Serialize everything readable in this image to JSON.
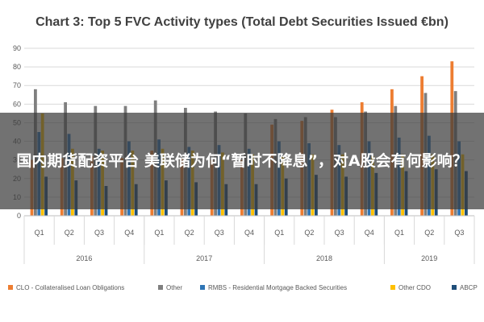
{
  "overlay": {
    "headline": "国内期货配资平台 美联储为何“暂时不降息”，对A股会有何影响？"
  },
  "chart_data": {
    "type": "bar",
    "title": "Chart 3: Top 5 FVC Activity types (Total Debt Securities Issued €bn)",
    "ylim": [
      0,
      90
    ],
    "yticks": [
      0,
      10,
      20,
      30,
      40,
      50,
      60,
      70,
      80,
      90
    ],
    "grid": true,
    "legend_position": "bottom",
    "categories": [
      "Q1",
      "Q2",
      "Q3",
      "Q4",
      "Q1",
      "Q2",
      "Q3",
      "Q4",
      "Q1",
      "Q2",
      "Q3",
      "Q4",
      "Q1",
      "Q2",
      "Q3"
    ],
    "years": [
      {
        "label": "2016",
        "quarters": 4
      },
      {
        "label": "2017",
        "quarters": 4
      },
      {
        "label": "2018",
        "quarters": 4
      },
      {
        "label": "2019",
        "quarters": 3
      }
    ],
    "series": [
      {
        "name": "CLO - Collateralised Loan Obligations",
        "color": "#ed7d31",
        "values": [
          30,
          31,
          32,
          31,
          35,
          31,
          30,
          30,
          49,
          51,
          57,
          61,
          68,
          75,
          83
        ]
      },
      {
        "name": "Other",
        "color": "#7f7f7f",
        "values": [
          68,
          61,
          59,
          59,
          62,
          58,
          56,
          55,
          52,
          53,
          53,
          56,
          59,
          66,
          67
        ]
      },
      {
        "name": "RMBS - Residential Mortgage Backed Securities",
        "color": "#2e75b6",
        "values": [
          45,
          44,
          36,
          40,
          41,
          37,
          38,
          36,
          40,
          39,
          38,
          40,
          42,
          43,
          40
        ]
      },
      {
        "name": "Other CDO",
        "color": "#ffc000",
        "values": [
          55,
          36,
          35,
          35,
          36,
          35,
          34,
          33,
          32,
          33,
          33,
          32,
          33,
          33,
          33
        ]
      },
      {
        "name": "ABCP",
        "color": "#1f4e79",
        "values": [
          21,
          19,
          16,
          17,
          19,
          18,
          17,
          17,
          20,
          22,
          21,
          23,
          24,
          25,
          24
        ]
      }
    ]
  }
}
